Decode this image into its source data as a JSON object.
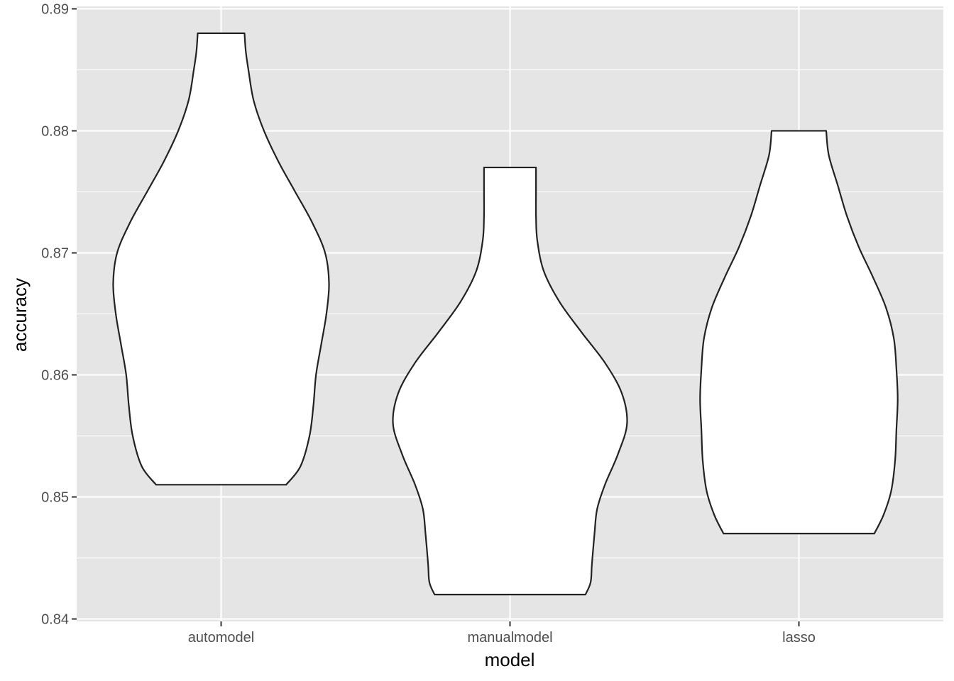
{
  "chart_data": {
    "type": "violin",
    "title": "",
    "xlabel": "model",
    "ylabel": "accuracy",
    "ylim": [
      0.8398,
      0.8902
    ],
    "y_ticks": [
      0.84,
      0.85,
      0.86,
      0.87,
      0.88,
      0.89
    ],
    "y_tick_labels": [
      "0.84",
      "0.85",
      "0.86",
      "0.87",
      "0.88",
      "0.89"
    ],
    "categories": [
      "automodel",
      "manualmodel",
      "lasso"
    ],
    "grid": true,
    "colors": {
      "panel": "#e5e5e5",
      "grid": "#ffffff",
      "violin_fill": "#ffffff",
      "violin_stroke": "#222222",
      "tick_text": "#4d4d4d"
    },
    "violins": [
      {
        "category": "automodel",
        "min": 0.851,
        "max": 0.888,
        "density_profile": [
          [
            0.851,
            0.5
          ],
          [
            0.8525,
            0.61
          ],
          [
            0.855,
            0.68
          ],
          [
            0.8575,
            0.71
          ],
          [
            0.86,
            0.73
          ],
          [
            0.8625,
            0.77
          ],
          [
            0.865,
            0.81
          ],
          [
            0.8675,
            0.83
          ],
          [
            0.87,
            0.8
          ],
          [
            0.8725,
            0.7
          ],
          [
            0.875,
            0.57
          ],
          [
            0.8775,
            0.44
          ],
          [
            0.88,
            0.33
          ],
          [
            0.8825,
            0.25
          ],
          [
            0.885,
            0.21
          ],
          [
            0.8865,
            0.19
          ],
          [
            0.888,
            0.18
          ]
        ]
      },
      {
        "category": "manualmodel",
        "min": 0.842,
        "max": 0.877,
        "density_profile": [
          [
            0.842,
            0.58
          ],
          [
            0.843,
            0.62
          ],
          [
            0.8445,
            0.63
          ],
          [
            0.847,
            0.65
          ],
          [
            0.849,
            0.67
          ],
          [
            0.851,
            0.73
          ],
          [
            0.8535,
            0.83
          ],
          [
            0.856,
            0.9
          ],
          [
            0.8585,
            0.86
          ],
          [
            0.861,
            0.73
          ],
          [
            0.8635,
            0.55
          ],
          [
            0.866,
            0.38
          ],
          [
            0.8685,
            0.26
          ],
          [
            0.871,
            0.21
          ],
          [
            0.873,
            0.2
          ],
          [
            0.875,
            0.2
          ],
          [
            0.877,
            0.2
          ]
        ]
      },
      {
        "category": "lasso",
        "min": 0.847,
        "max": 0.88,
        "density_profile": [
          [
            0.847,
            0.58
          ],
          [
            0.8485,
            0.65
          ],
          [
            0.8505,
            0.71
          ],
          [
            0.853,
            0.74
          ],
          [
            0.8555,
            0.75
          ],
          [
            0.858,
            0.76
          ],
          [
            0.8605,
            0.75
          ],
          [
            0.863,
            0.73
          ],
          [
            0.8655,
            0.67
          ],
          [
            0.868,
            0.57
          ],
          [
            0.8705,
            0.46
          ],
          [
            0.873,
            0.37
          ],
          [
            0.8755,
            0.3
          ],
          [
            0.878,
            0.23
          ],
          [
            0.88,
            0.21
          ]
        ]
      }
    ]
  }
}
